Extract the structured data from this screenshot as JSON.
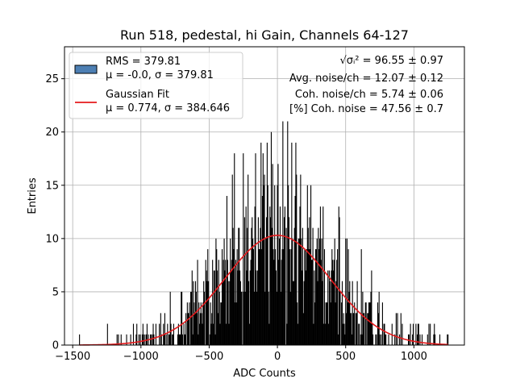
{
  "chart_data": {
    "type": "bar",
    "title": "Run 518, pedestal, hi Gain, Channels 64-127",
    "xlabel": "ADC Counts",
    "ylabel": "Entries",
    "xlim": [
      -1560,
      1370
    ],
    "ylim": [
      0,
      28
    ],
    "xticks": [
      -1500,
      -1000,
      -500,
      0,
      500,
      1000
    ],
    "yticks": [
      0,
      5,
      10,
      15,
      20,
      25
    ],
    "grid": true,
    "legend_position": "upper-left",
    "histogram": {
      "name": "RMS = 379.81",
      "stats_line": "μ = -0.0, σ = 379.81",
      "color": "#000000",
      "legend_patch_color": "#4d7fb3",
      "x_min": -1450,
      "x_max": 1250,
      "rms": 379.81,
      "mean": -0.0,
      "sigma": 379.81
    },
    "gaussian_fit": {
      "name": "Gaussian Fit",
      "stats_line": "μ = 0.774, σ = 384.646",
      "color": "#e41a1c",
      "mu": 0.774,
      "sigma": 384.646,
      "amplitude": 10.3,
      "x_range": [
        -1450,
        1250
      ]
    },
    "annotations": [
      "√σᵢ² = 96.55 ± 0.97",
      "Avg. noise/ch = 12.07 ± 0.12",
      "Coh. noise/ch = 5.74 ± 0.06",
      "[%] Coh. noise = 47.56 ± 0.7"
    ]
  }
}
